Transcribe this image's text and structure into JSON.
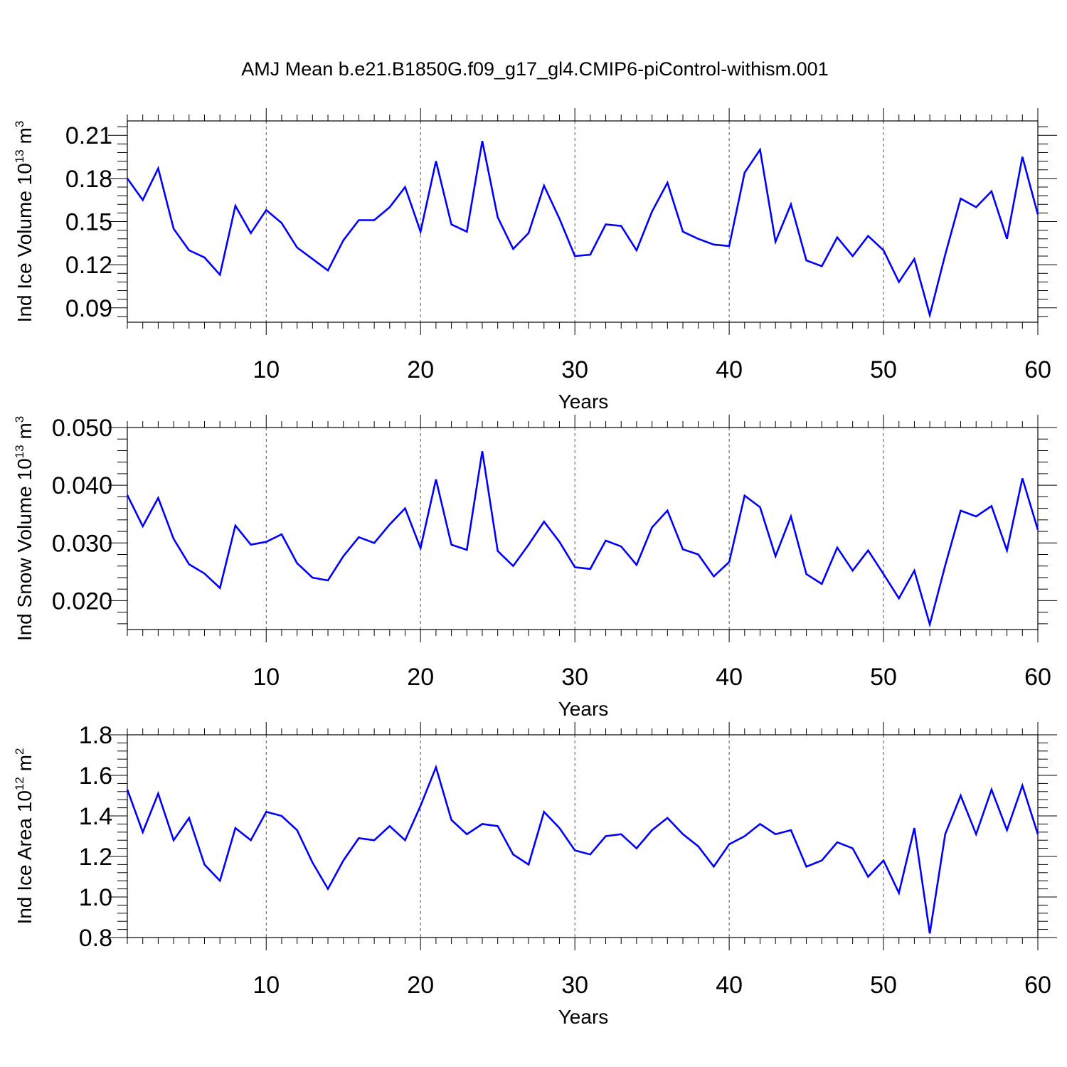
{
  "title": "AMJ Mean b.e21.B1850G.f09_g17_gl4.CMIP6-piControl-withism.001",
  "chart_data": [
    {
      "type": "line",
      "xlabel": "Years",
      "ylabel": {
        "main": "Ind Ice Volume 10",
        "sup": "13",
        "unit": " m",
        "unit_sup": "3"
      },
      "xlim": [
        1,
        60
      ],
      "ylim": [
        0.08,
        0.22
      ],
      "xticks": [
        10,
        20,
        30,
        40,
        50,
        60
      ],
      "xtick_labels": [
        "10",
        "20",
        "30",
        "40",
        "50",
        "60"
      ],
      "yticks": [
        0.09,
        0.12,
        0.15,
        0.18,
        0.21
      ],
      "ytick_labels": [
        "0.09",
        "0.12",
        "0.15",
        "0.18",
        "0.21"
      ],
      "color": "#0000ff",
      "x": [
        1,
        2,
        3,
        4,
        5,
        6,
        7,
        8,
        9,
        10,
        11,
        12,
        13,
        14,
        15,
        16,
        17,
        18,
        19,
        20,
        21,
        22,
        23,
        24,
        25,
        26,
        27,
        28,
        29,
        30,
        31,
        32,
        33,
        34,
        35,
        36,
        37,
        38,
        39,
        40,
        41,
        42,
        43,
        44,
        45,
        46,
        47,
        48,
        49,
        50,
        51,
        52,
        53,
        54,
        55,
        56,
        57,
        58,
        59,
        60
      ],
      "values": [
        0.18,
        0.165,
        0.187,
        0.145,
        0.13,
        0.125,
        0.113,
        0.161,
        0.142,
        0.158,
        0.149,
        0.132,
        0.124,
        0.116,
        0.137,
        0.151,
        0.151,
        0.16,
        0.174,
        0.143,
        0.192,
        0.148,
        0.143,
        0.206,
        0.153,
        0.131,
        0.142,
        0.175,
        0.152,
        0.126,
        0.127,
        0.148,
        0.147,
        0.13,
        0.157,
        0.177,
        0.143,
        0.138,
        0.134,
        0.133,
        0.184,
        0.2,
        0.136,
        0.162,
        0.123,
        0.119,
        0.139,
        0.126,
        0.14,
        0.13,
        0.108,
        0.124,
        0.085,
        0.127,
        0.166,
        0.16,
        0.171,
        0.138,
        0.195,
        0.155
      ]
    },
    {
      "type": "line",
      "xlabel": "Years",
      "ylabel": {
        "main": "Ind Snow Volume 10",
        "sup": "13",
        "unit": " m",
        "unit_sup": "3"
      },
      "xlim": [
        1,
        60
      ],
      "ylim": [
        0.015,
        0.05
      ],
      "xticks": [
        10,
        20,
        30,
        40,
        50,
        60
      ],
      "xtick_labels": [
        "10",
        "20",
        "30",
        "40",
        "50",
        "60"
      ],
      "yticks": [
        0.02,
        0.03,
        0.04,
        0.05
      ],
      "ytick_labels": [
        "0.020",
        "0.030",
        "0.040",
        "0.050"
      ],
      "color": "#0000ff",
      "x": [
        1,
        2,
        3,
        4,
        5,
        6,
        7,
        8,
        9,
        10,
        11,
        12,
        13,
        14,
        15,
        16,
        17,
        18,
        19,
        20,
        21,
        22,
        23,
        24,
        25,
        26,
        27,
        28,
        29,
        30,
        31,
        32,
        33,
        34,
        35,
        36,
        37,
        38,
        39,
        40,
        41,
        42,
        43,
        44,
        45,
        46,
        47,
        48,
        49,
        50,
        51,
        52,
        53,
        54,
        55,
        56,
        57,
        58,
        59,
        60
      ],
      "values": [
        0.0383,
        0.0329,
        0.0378,
        0.0307,
        0.0263,
        0.0247,
        0.0222,
        0.033,
        0.0297,
        0.0302,
        0.0315,
        0.0265,
        0.024,
        0.0235,
        0.0277,
        0.031,
        0.03,
        0.0332,
        0.036,
        0.0291,
        0.041,
        0.0297,
        0.0288,
        0.0459,
        0.0286,
        0.026,
        0.0297,
        0.0337,
        0.0302,
        0.0258,
        0.0255,
        0.0304,
        0.0294,
        0.0262,
        0.0327,
        0.0356,
        0.0289,
        0.028,
        0.0242,
        0.0267,
        0.0382,
        0.0362,
        0.0277,
        0.0346,
        0.0246,
        0.0229,
        0.0292,
        0.0252,
        0.0287,
        0.0246,
        0.0204,
        0.0252,
        0.0159,
        0.0261,
        0.0356,
        0.0346,
        0.0364,
        0.0287,
        0.0412,
        0.0323
      ]
    },
    {
      "type": "line",
      "xlabel": "Years",
      "ylabel": {
        "main": "Ind Ice Area 10",
        "sup": "12",
        "unit": " m",
        "unit_sup": "2"
      },
      "xlim": [
        1,
        60
      ],
      "ylim": [
        0.8,
        1.8
      ],
      "xticks": [
        10,
        20,
        30,
        40,
        50,
        60
      ],
      "xtick_labels": [
        "10",
        "20",
        "30",
        "40",
        "50",
        "60"
      ],
      "yticks": [
        0.8,
        1.0,
        1.2,
        1.4,
        1.6,
        1.8
      ],
      "ytick_labels": [
        "0.8",
        "1.0",
        "1.2",
        "1.4",
        "1.6",
        "1.8"
      ],
      "color": "#0000ff",
      "x": [
        1,
        2,
        3,
        4,
        5,
        6,
        7,
        8,
        9,
        10,
        11,
        12,
        13,
        14,
        15,
        16,
        17,
        18,
        19,
        20,
        21,
        22,
        23,
        24,
        25,
        26,
        27,
        28,
        29,
        30,
        31,
        32,
        33,
        34,
        35,
        36,
        37,
        38,
        39,
        40,
        41,
        42,
        43,
        44,
        45,
        46,
        47,
        48,
        49,
        50,
        51,
        52,
        53,
        54,
        55,
        56,
        57,
        58,
        59,
        60
      ],
      "values": [
        1.53,
        1.32,
        1.51,
        1.28,
        1.39,
        1.16,
        1.08,
        1.34,
        1.28,
        1.42,
        1.4,
        1.33,
        1.17,
        1.04,
        1.18,
        1.29,
        1.28,
        1.35,
        1.28,
        1.45,
        1.64,
        1.38,
        1.31,
        1.36,
        1.35,
        1.21,
        1.16,
        1.42,
        1.34,
        1.23,
        1.21,
        1.3,
        1.31,
        1.24,
        1.33,
        1.39,
        1.31,
        1.25,
        1.15,
        1.26,
        1.3,
        1.36,
        1.31,
        1.33,
        1.15,
        1.18,
        1.27,
        1.24,
        1.1,
        1.18,
        1.02,
        1.34,
        0.82,
        1.31,
        1.5,
        1.31,
        1.53,
        1.33,
        1.55,
        1.31
      ]
    }
  ]
}
